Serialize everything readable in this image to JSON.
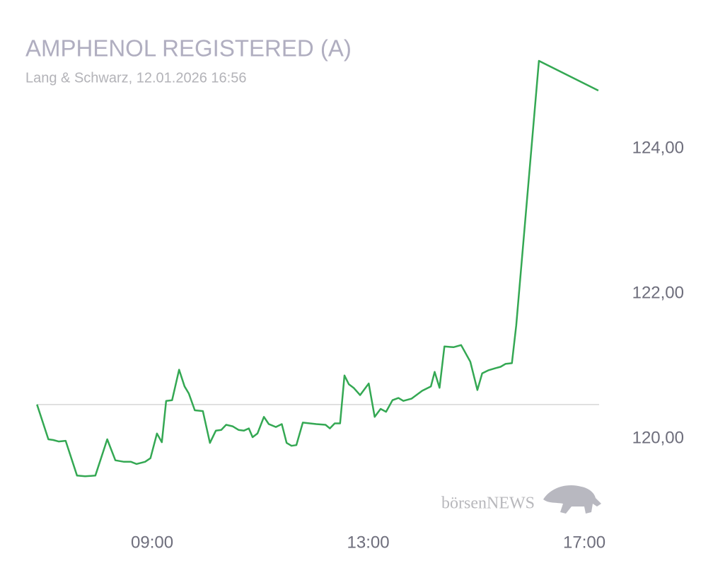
{
  "chart_data": {
    "type": "line",
    "title": "AMPHENOL REGISTERED (A)",
    "subtitle": "Lang & Schwarz, 12.01.2026 16:56",
    "watermark": "börsenNEWS",
    "color": "#34a853",
    "reference_line": 120.47,
    "x": [
      6.87,
      7.08,
      7.17,
      7.27,
      7.4,
      7.61,
      7.76,
      7.95,
      8.17,
      8.32,
      8.48,
      8.61,
      8.71,
      8.87,
      8.97,
      9.09,
      9.18,
      9.26,
      9.37,
      9.5,
      9.6,
      9.68,
      9.79,
      9.94,
      10.07,
      10.18,
      10.28,
      10.37,
      10.49,
      10.6,
      10.7,
      10.79,
      10.86,
      10.95,
      11.07,
      11.16,
      11.29,
      11.4,
      11.49,
      11.58,
      11.67,
      11.79,
      11.92,
      12.04,
      12.21,
      12.29,
      12.38,
      12.48,
      12.56,
      12.64,
      12.73,
      12.85,
      13.01,
      13.12,
      13.23,
      13.33,
      13.45,
      13.56,
      13.65,
      13.8,
      14.0,
      14.16,
      14.23,
      14.32,
      14.41,
      14.58,
      14.72,
      14.89,
      15.02,
      15.11,
      15.22,
      15.35,
      15.45,
      15.54,
      15.66,
      15.74,
      16.16,
      17.26
    ],
    "values": [
      120.47,
      119.99,
      119.98,
      119.96,
      119.97,
      119.49,
      119.48,
      119.49,
      119.99,
      119.7,
      119.68,
      119.68,
      119.65,
      119.68,
      119.73,
      120.07,
      119.95,
      120.52,
      120.53,
      120.95,
      120.72,
      120.62,
      120.39,
      120.38,
      119.94,
      120.11,
      120.12,
      120.19,
      120.17,
      120.12,
      120.11,
      120.14,
      120.02,
      120.07,
      120.3,
      120.2,
      120.16,
      120.2,
      119.94,
      119.9,
      119.91,
      120.22,
      120.21,
      120.2,
      120.19,
      120.14,
      120.21,
      120.21,
      120.87,
      120.75,
      120.7,
      120.6,
      120.76,
      120.3,
      120.41,
      120.37,
      120.53,
      120.56,
      120.52,
      120.55,
      120.66,
      120.72,
      120.92,
      120.7,
      121.27,
      121.26,
      121.29,
      121.06,
      120.67,
      120.9,
      120.94,
      120.97,
      120.99,
      121.03,
      121.04,
      121.56,
      125.21,
      124.8
    ],
    "xlim": [
      6.8,
      17.3
    ],
    "xticks": [
      {
        "value": 9,
        "label": "09:00"
      },
      {
        "value": 13,
        "label": "13:00"
      },
      {
        "value": 17,
        "label": "17:00"
      }
    ],
    "ylim": [
      118.8,
      125.3
    ],
    "yticks": [
      {
        "value": 120,
        "label": "120,00"
      },
      {
        "value": 122,
        "label": "122,00"
      },
      {
        "value": 124,
        "label": "124,00"
      }
    ],
    "grid": false
  }
}
